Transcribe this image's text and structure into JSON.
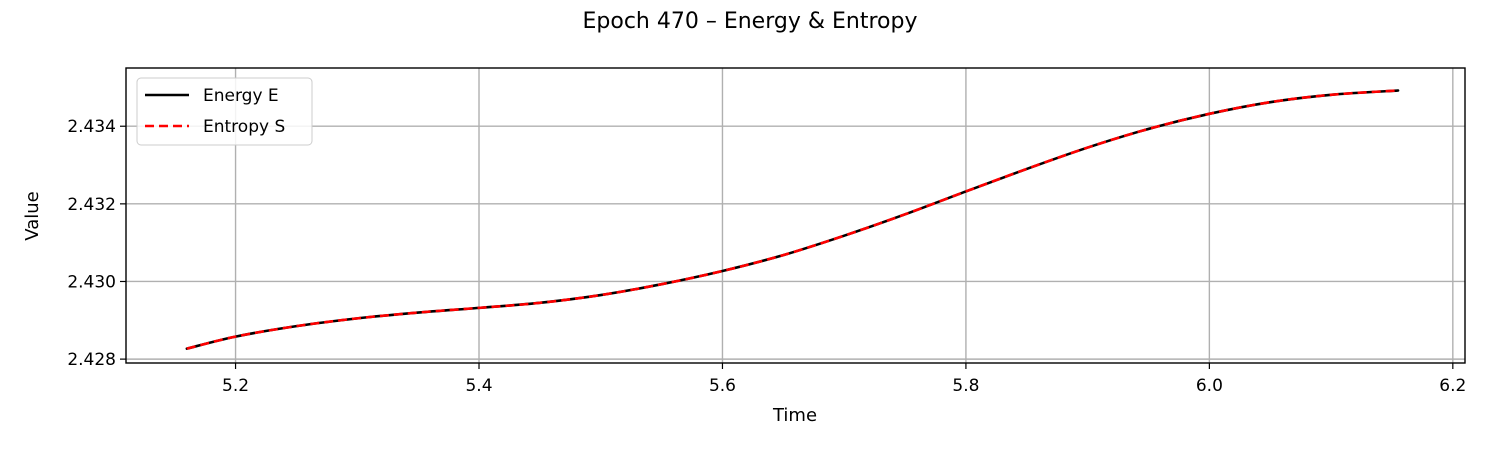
{
  "chart_data": {
    "type": "line",
    "title": "Epoch 470 – Energy & Entropy",
    "xlabel": "Time",
    "ylabel": "Value",
    "xlim": [
      5.11,
      6.21
    ],
    "ylim": [
      2.4279,
      2.4355
    ],
    "xticks": [
      5.2,
      5.4,
      5.6,
      5.8,
      6.0,
      6.2
    ],
    "xtick_labels": [
      "5.2",
      "5.4",
      "5.6",
      "5.8",
      "6.0",
      "6.2"
    ],
    "yticks": [
      2.428,
      2.43,
      2.432,
      2.434
    ],
    "ytick_labels": [
      "2.428",
      "2.430",
      "2.432",
      "2.434"
    ],
    "grid": true,
    "legend_position": "upper-left",
    "series": [
      {
        "name": "Energy E",
        "color": "#000000",
        "style": "solid",
        "x": [
          5.16,
          5.2,
          5.25,
          5.3,
          5.35,
          5.4,
          5.45,
          5.5,
          5.55,
          5.6,
          5.65,
          5.7,
          5.75,
          5.8,
          5.85,
          5.9,
          5.95,
          6.0,
          6.05,
          6.1,
          6.155
        ],
        "y": [
          2.42827,
          2.42858,
          2.42885,
          2.42905,
          2.4292,
          2.42932,
          2.42945,
          2.42965,
          2.42993,
          2.43027,
          2.43068,
          2.43118,
          2.43173,
          2.43232,
          2.4329,
          2.43345,
          2.43393,
          2.43432,
          2.43462,
          2.43481,
          2.43492
        ]
      },
      {
        "name": "Entropy S",
        "color": "#ff0000",
        "style": "dashed",
        "x": [
          5.16,
          5.2,
          5.25,
          5.3,
          5.35,
          5.4,
          5.45,
          5.5,
          5.55,
          5.6,
          5.65,
          5.7,
          5.75,
          5.8,
          5.85,
          5.9,
          5.95,
          6.0,
          6.05,
          6.1,
          6.155
        ],
        "y": [
          2.42827,
          2.42858,
          2.42885,
          2.42905,
          2.4292,
          2.42932,
          2.42945,
          2.42965,
          2.42993,
          2.43027,
          2.43068,
          2.43118,
          2.43173,
          2.43232,
          2.4329,
          2.43345,
          2.43393,
          2.43432,
          2.43462,
          2.43481,
          2.43492
        ]
      }
    ]
  }
}
